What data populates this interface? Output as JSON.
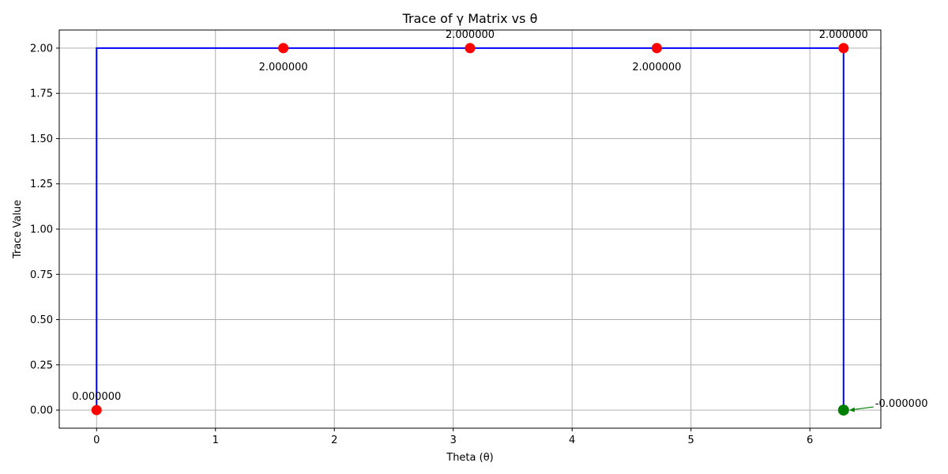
{
  "chart_data": {
    "type": "line",
    "title": "Trace of γ Matrix vs θ",
    "xlabel": "Theta (θ)",
    "ylabel": "Trace Value",
    "xlim": [
      -0.314,
      6.597
    ],
    "ylim": [
      -0.1,
      2.1
    ],
    "x_ticks": [
      0,
      1,
      2,
      3,
      4,
      5,
      6
    ],
    "x_tick_labels": [
      "0",
      "1",
      "2",
      "3",
      "4",
      "5",
      "6"
    ],
    "y_ticks": [
      0.0,
      0.25,
      0.5,
      0.75,
      1.0,
      1.25,
      1.5,
      1.75,
      2.0
    ],
    "y_tick_labels": [
      "0.00",
      "0.25",
      "0.50",
      "0.75",
      "1.00",
      "1.25",
      "1.50",
      "1.75",
      "2.00"
    ],
    "grid": true,
    "colors": {
      "line": "#0000ff",
      "marker": "#ff0000",
      "highlight_marker": "#008000",
      "annotation_arrow": "#008000",
      "grid": "#b0b0b0"
    },
    "series": [
      {
        "x": [
          0.0,
          0.0,
          6.2832,
          6.2832
        ],
        "y": [
          0.0,
          2.0,
          2.0,
          0.0
        ]
      }
    ],
    "markers": [
      {
        "x": 0.0,
        "y": 0.0,
        "label": "0.000000",
        "label_position": "above"
      },
      {
        "x": 1.5708,
        "y": 2.0,
        "label": "2.000000",
        "label_position": "below"
      },
      {
        "x": 3.1416,
        "y": 2.0,
        "label": "2.000000",
        "label_position": "above"
      },
      {
        "x": 4.7124,
        "y": 2.0,
        "label": "2.000000",
        "label_position": "below"
      },
      {
        "x": 6.2832,
        "y": 2.0,
        "label": "2.000000",
        "label_position": "above"
      }
    ],
    "highlight": {
      "x": 6.2832,
      "y": 0.0,
      "label": "-0.000000"
    }
  }
}
